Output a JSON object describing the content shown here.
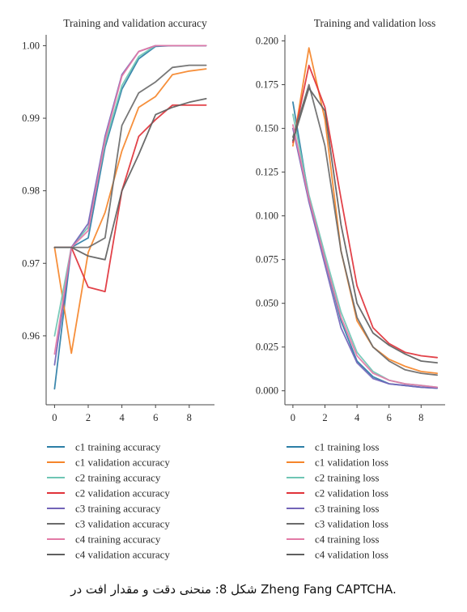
{
  "chart_data": [
    {
      "type": "line",
      "title": "Training and validation accuracy",
      "xlabel": "",
      "ylabel": "",
      "xlim": [
        -0.5,
        9.5
      ],
      "ylim": [
        0.9505,
        1.0015
      ],
      "xticks": [
        0,
        2,
        4,
        6,
        8
      ],
      "xtick_labels": [
        "0",
        "2",
        "4",
        "6",
        "8"
      ],
      "yticks": [
        0.96,
        0.97,
        0.98,
        0.99,
        1.0
      ],
      "ytick_labels": [
        "0.96",
        "0.97",
        "0.98",
        "0.99",
        "1.00"
      ],
      "grid": false,
      "legend_position": "bottom",
      "x": [
        0,
        1,
        2,
        3,
        4,
        5,
        6,
        7,
        8,
        9
      ],
      "series": [
        {
          "name": "c1 training accuracy",
          "color": "#2c7ea6",
          "values": [
            0.9527,
            0.9722,
            0.9735,
            0.986,
            0.994,
            0.9982,
            0.9999,
            1.0,
            1.0,
            1.0
          ]
        },
        {
          "name": "c1 validation accuracy",
          "color": "#f5852a",
          "values": [
            0.9722,
            0.9576,
            0.9715,
            0.977,
            0.9855,
            0.9915,
            0.993,
            0.996,
            0.9965,
            0.9968
          ]
        },
        {
          "name": "c2 training accuracy",
          "color": "#6fc5b4",
          "values": [
            0.96,
            0.9722,
            0.975,
            0.9865,
            0.9945,
            0.9985,
            1.0,
            1.0,
            1.0,
            1.0
          ]
        },
        {
          "name": "c2 validation accuracy",
          "color": "#e0323a",
          "values": [
            0.9722,
            0.9722,
            0.9667,
            0.9661,
            0.98,
            0.9875,
            0.9898,
            0.9918,
            0.9918,
            0.9918
          ]
        },
        {
          "name": "c3 training accuracy",
          "color": "#7264b8",
          "values": [
            0.956,
            0.9722,
            0.9755,
            0.9875,
            0.996,
            0.9992,
            1.0,
            1.0,
            1.0,
            1.0
          ]
        },
        {
          "name": "c3 validation accuracy",
          "color": "#6b6b6b",
          "values": [
            0.9722,
            0.9722,
            0.9722,
            0.9735,
            0.989,
            0.9935,
            0.995,
            0.997,
            0.9973,
            0.9973
          ]
        },
        {
          "name": "c4 training accuracy",
          "color": "#e37aa6",
          "values": [
            0.9575,
            0.9722,
            0.9745,
            0.987,
            0.9958,
            0.9992,
            1.0,
            1.0,
            1.0,
            1.0
          ]
        },
        {
          "name": "c4 validation accuracy",
          "color": "#5f5f5f",
          "values": [
            0.9722,
            0.9722,
            0.971,
            0.9705,
            0.98,
            0.985,
            0.9905,
            0.9915,
            0.9922,
            0.9927
          ]
        }
      ]
    },
    {
      "type": "line",
      "title": "Training and validation loss",
      "xlabel": "",
      "ylabel": "",
      "xlim": [
        -0.5,
        9.5
      ],
      "ylim": [
        -0.008,
        0.2035
      ],
      "xticks": [
        0,
        2,
        4,
        6,
        8
      ],
      "xtick_labels": [
        "0",
        "2",
        "4",
        "6",
        "8"
      ],
      "yticks": [
        0.0,
        0.025,
        0.05,
        0.075,
        0.1,
        0.125,
        0.15,
        0.175,
        0.2
      ],
      "ytick_labels": [
        "0.000",
        "0.025",
        "0.050",
        "0.075",
        "0.100",
        "0.125",
        "0.150",
        "0.175",
        "0.200"
      ],
      "grid": false,
      "legend_position": "bottom",
      "x": [
        0,
        1,
        2,
        3,
        4,
        5,
        6,
        7,
        8,
        9
      ],
      "series": [
        {
          "name": "c1 training loss",
          "color": "#2c7ea6",
          "values": [
            0.165,
            0.11,
            0.075,
            0.04,
            0.017,
            0.008,
            0.004,
            0.003,
            0.002,
            0.0015
          ]
        },
        {
          "name": "c1 validation loss",
          "color": "#f5852a",
          "values": [
            0.14,
            0.196,
            0.155,
            0.08,
            0.04,
            0.025,
            0.018,
            0.014,
            0.011,
            0.01
          ]
        },
        {
          "name": "c2 training loss",
          "color": "#6fc5b4",
          "values": [
            0.158,
            0.112,
            0.078,
            0.045,
            0.022,
            0.011,
            0.006,
            0.004,
            0.003,
            0.002
          ]
        },
        {
          "name": "c2 validation loss",
          "color": "#e0323a",
          "values": [
            0.142,
            0.186,
            0.162,
            0.11,
            0.06,
            0.036,
            0.027,
            0.022,
            0.02,
            0.019
          ]
        },
        {
          "name": "c3 training loss",
          "color": "#7264b8",
          "values": [
            0.15,
            0.108,
            0.072,
            0.036,
            0.016,
            0.007,
            0.004,
            0.003,
            0.002,
            0.0015
          ]
        },
        {
          "name": "c3 validation loss",
          "color": "#6b6b6b",
          "values": [
            0.145,
            0.175,
            0.14,
            0.08,
            0.042,
            0.025,
            0.017,
            0.012,
            0.01,
            0.009
          ]
        },
        {
          "name": "c4 training loss",
          "color": "#e37aa6",
          "values": [
            0.152,
            0.11,
            0.075,
            0.042,
            0.02,
            0.01,
            0.006,
            0.004,
            0.003,
            0.002
          ]
        },
        {
          "name": "c4 validation loss",
          "color": "#5f5f5f",
          "values": [
            0.143,
            0.173,
            0.16,
            0.095,
            0.05,
            0.033,
            0.026,
            0.021,
            0.017,
            0.016
          ]
        }
      ]
    }
  ],
  "caption": "شکل 8: منحنی دقت و مقدار افت در Zheng Fang CAPTCHA."
}
